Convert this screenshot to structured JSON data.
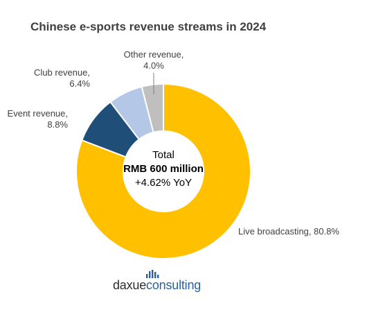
{
  "chart_data": {
    "type": "pie",
    "donut": true,
    "title": "Chinese e-sports revenue streams in 2024",
    "slices": [
      {
        "label": "Live broadcasting, 80.8%",
        "value": 80.8,
        "color": "#FFC000"
      },
      {
        "label": "Event revenue,\n8.8%",
        "value": 8.8,
        "color": "#1F4E79"
      },
      {
        "label": "Club revenue,\n6.4%",
        "value": 6.4,
        "color": "#B4C7E7"
      },
      {
        "label": "Other revenue,\n4.0%",
        "value": 4.0,
        "color": "#BFBFBF"
      }
    ],
    "center": {
      "line1": "Total",
      "line2": "RMB 600 million",
      "line3": "+4.62% YoY"
    }
  },
  "logo": {
    "part1": "daxue",
    "part2": "consulting",
    "color1": "#2d2d2d",
    "color2": "#2c5f9e"
  }
}
